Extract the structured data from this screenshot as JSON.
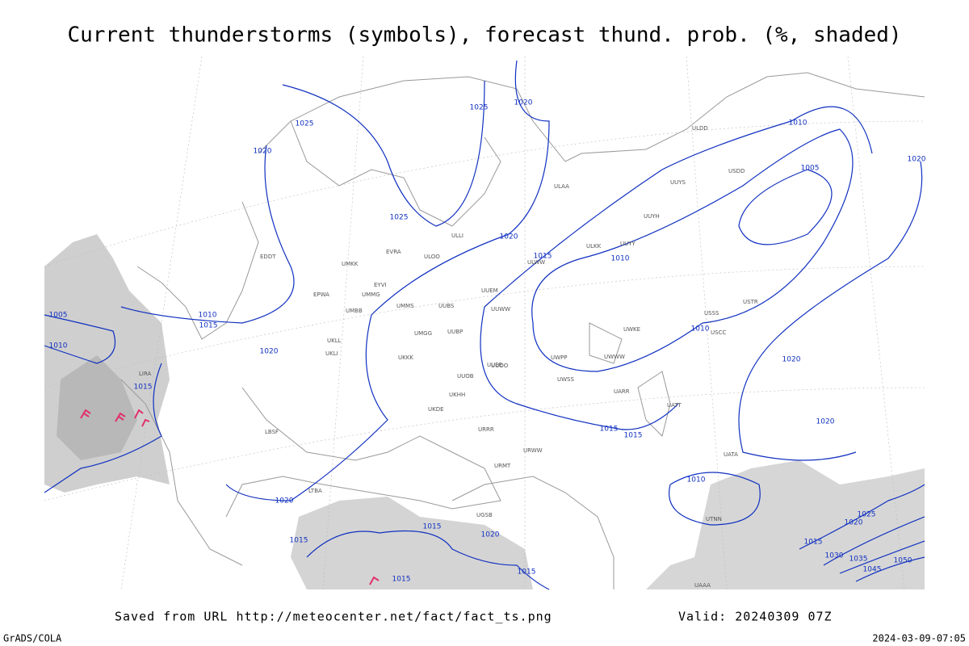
{
  "header": {
    "title": "Current thunderstorms (symbols), forecast thund. prob. (%, shaded)"
  },
  "footer": {
    "source": "Saved from URL  http://meteocenter.net/fact/fact_ts.png",
    "valid": "Valid: 20240309 07Z",
    "credit": "GrADS/COLA",
    "timestamp": "2024-03-09-07:05"
  },
  "map": {
    "isobar_labels": [
      "1025",
      "1020",
      "1025",
      "1020",
      "1025",
      "1020",
      "1015",
      "1010",
      "1010",
      "1005",
      "1020",
      "1010",
      "1015",
      "1020",
      "1015",
      "1005",
      "1010",
      "1015",
      "1015",
      "1010",
      "1020",
      "1020",
      "1010",
      "1020",
      "1015",
      "1020",
      "1015",
      "1015",
      "1015",
      "1015",
      "1025",
      "1020",
      "1030",
      "1035",
      "1045",
      "1050"
    ],
    "stations": [
      "ULAA",
      "ULLI",
      "ULOO",
      "EVRA",
      "EDDT",
      "UMKK",
      "EYVI",
      "EPWA",
      "UMMG",
      "UMBB",
      "UMMS",
      "UUBS",
      "UUEM",
      "UUWW",
      "UMGG",
      "UUBP",
      "UKLL",
      "UKLI",
      "UKKK",
      "UUOO",
      "UUOB",
      "UKHH",
      "UKDE",
      "ULWW",
      "ULKK",
      "UUYY",
      "UUYH",
      "UUYS",
      "ULDD",
      "USDD",
      "USSS",
      "USCC",
      "USTR",
      "UWKE",
      "UWWW",
      "UWPP",
      "UWSS",
      "UARR",
      "UATT",
      "URRR",
      "URWW",
      "URMT",
      "UGSB",
      "UTNN",
      "UATA",
      "LIRA",
      "LBSF",
      "LTBA",
      "UUEE",
      "UAAA"
    ]
  }
}
